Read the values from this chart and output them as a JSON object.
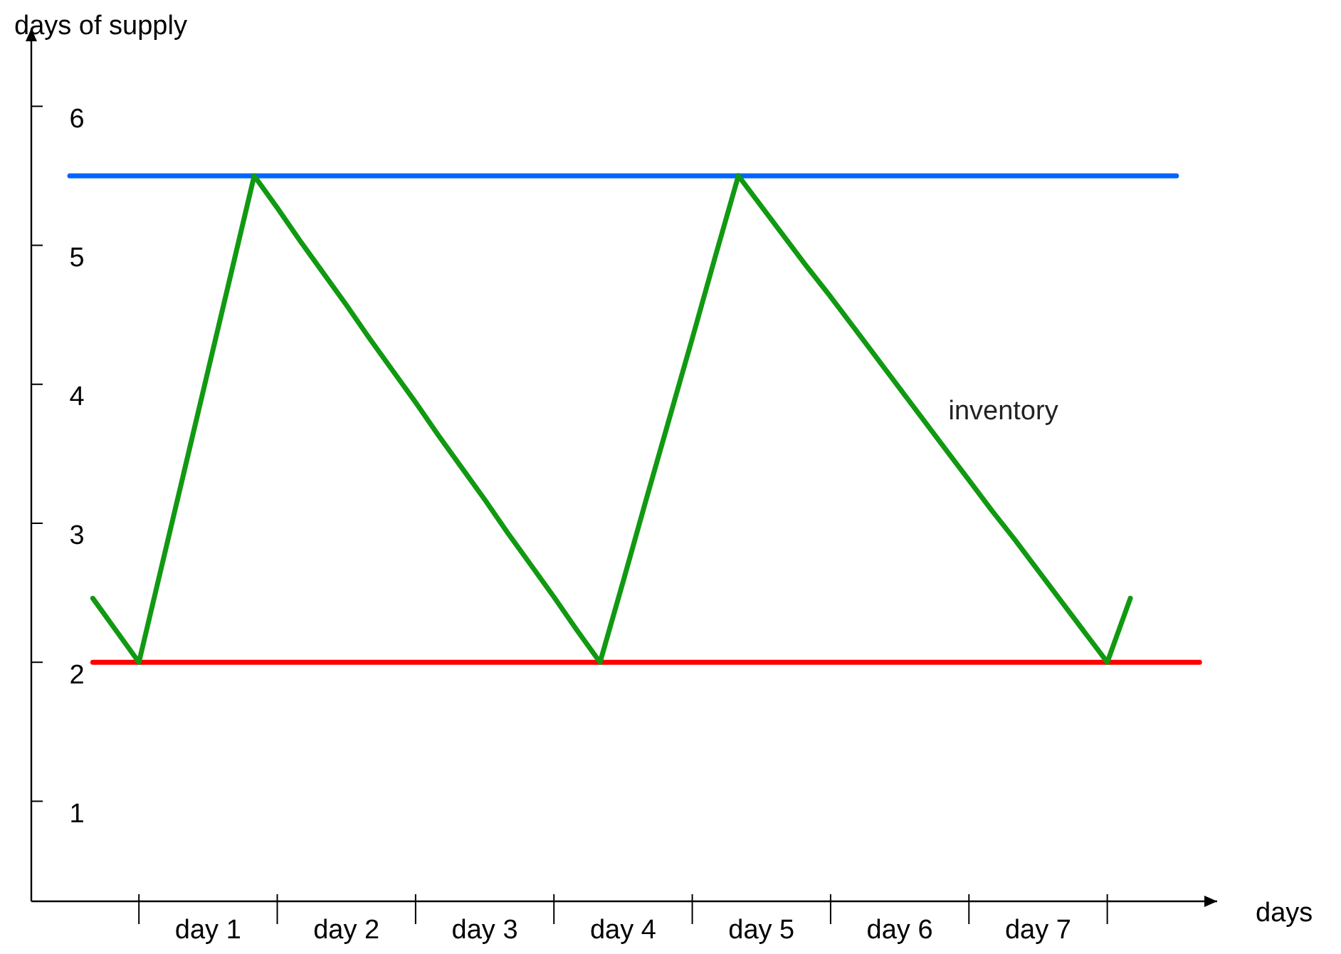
{
  "chart_data": {
    "type": "line",
    "xlabel": "days",
    "ylabel": "days of supply",
    "ylim": [
      0.28,
      6.56
    ],
    "categories": [
      null,
      null,
      null,
      null,
      null,
      null,
      "day 1",
      null,
      null,
      null,
      null,
      null,
      "day 2",
      null,
      null,
      null,
      null,
      null,
      "day 3",
      null,
      null,
      null,
      null,
      null,
      "day 4",
      null,
      null,
      null,
      null,
      null,
      "day 5",
      null,
      null,
      null,
      null,
      null,
      "day 6",
      null,
      null,
      null,
      null,
      null,
      "day 7",
      null,
      null,
      null,
      null,
      null,
      null,
      null
    ],
    "yticks": [
      1,
      2,
      3,
      4,
      5,
      6
    ],
    "series": [
      {
        "color": "#0066ff",
        "values": [
          5.5,
          5.5,
          5.5,
          5.5,
          5.5,
          5.5,
          5.5,
          5.5,
          5.5,
          5.5,
          5.5,
          5.5,
          5.5,
          5.5,
          5.5,
          5.5,
          5.5,
          5.5,
          5.5,
          5.5,
          5.5,
          5.5,
          5.5,
          5.5,
          5.5,
          5.5,
          5.5,
          5.5,
          5.5,
          5.5,
          5.5,
          5.5,
          5.5,
          5.5,
          5.5,
          5.5,
          5.5,
          5.5,
          5.5,
          5.5,
          5.5,
          5.5,
          5.5,
          5.5,
          5.5,
          5.5,
          5.5,
          5.5,
          5.5,
          null
        ]
      },
      {
        "color": "#ff0000",
        "values": [
          null,
          2,
          2,
          2,
          2,
          2,
          2,
          2,
          2,
          2,
          2,
          2,
          2,
          2,
          2,
          2,
          2,
          2,
          2,
          2,
          2,
          2,
          2,
          2,
          2,
          2,
          2,
          2,
          2,
          2,
          2,
          2,
          2,
          2,
          2,
          2,
          2,
          2,
          2,
          2,
          2,
          2,
          2,
          2,
          2,
          2,
          2,
          2,
          2,
          2
        ]
      },
      {
        "name": "inventory",
        "color": "#119911",
        "values": [
          null,
          2.46,
          2.23,
          2,
          2.7,
          3.4,
          4.1,
          4.8,
          5.5,
          5.27,
          5.03,
          4.8,
          4.57,
          4.33,
          4.1,
          3.87,
          3.63,
          3.4,
          3.17,
          2.93,
          2.7,
          2.47,
          2.23,
          2,
          2.58,
          3.17,
          3.75,
          4.33,
          4.92,
          5.5,
          5.28,
          5.06,
          4.84,
          4.63,
          4.41,
          4.19,
          3.97,
          3.75,
          3.53,
          3.31,
          3.09,
          2.88,
          2.66,
          2.44,
          2.22,
          2,
          2.46,
          null,
          null,
          null
        ]
      }
    ]
  }
}
